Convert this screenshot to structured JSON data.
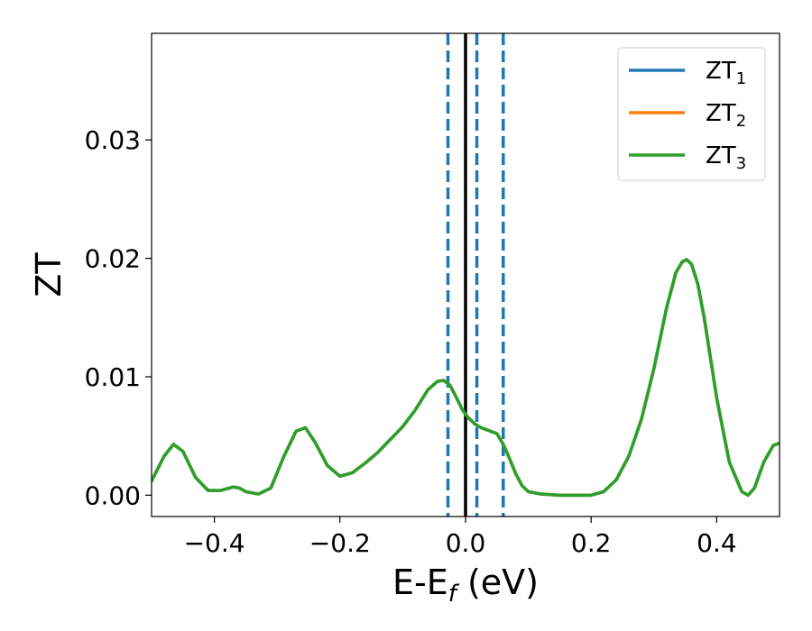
{
  "chart_data": {
    "type": "line",
    "xlabel_main": "E-E",
    "xlabel_sub": "f",
    "xlabel_unit": " (eV)",
    "ylabel": "ZT",
    "xlim": [
      -0.5,
      0.5
    ],
    "ylim": [
      -0.0018,
      0.039
    ],
    "x_ticks": [
      -0.4,
      -0.2,
      0.0,
      0.2,
      0.4
    ],
    "x_tick_labels": [
      "−0.4",
      "−0.2",
      "0.0",
      "0.2",
      "0.4"
    ],
    "y_ticks": [
      0.0,
      0.01,
      0.02,
      0.03
    ],
    "y_tick_labels": [
      "0.00",
      "0.01",
      "0.02",
      "0.03"
    ],
    "grid": false,
    "legend_position": "top-right",
    "vertical_lines": [
      {
        "x": -0.028,
        "style": "dashed",
        "color": "#1f77b4"
      },
      {
        "x": 0.0,
        "style": "solid",
        "color": "#000000"
      },
      {
        "x": 0.018,
        "style": "dashed",
        "color": "#1f77b4"
      },
      {
        "x": 0.06,
        "style": "dashed",
        "color": "#1f77b4"
      }
    ],
    "x": [
      -0.5,
      -0.48,
      -0.465,
      -0.45,
      -0.43,
      -0.41,
      -0.39,
      -0.37,
      -0.36,
      -0.35,
      -0.33,
      -0.31,
      -0.29,
      -0.27,
      -0.255,
      -0.24,
      -0.22,
      -0.2,
      -0.18,
      -0.16,
      -0.14,
      -0.12,
      -0.1,
      -0.08,
      -0.06,
      -0.045,
      -0.035,
      -0.025,
      -0.015,
      -0.005,
      0.005,
      0.015,
      0.025,
      0.035,
      0.05,
      0.06,
      0.07,
      0.08,
      0.09,
      0.1,
      0.12,
      0.15,
      0.18,
      0.2,
      0.22,
      0.24,
      0.26,
      0.28,
      0.3,
      0.32,
      0.335,
      0.345,
      0.352,
      0.36,
      0.37,
      0.38,
      0.4,
      0.42,
      0.44,
      0.45,
      0.46,
      0.475,
      0.49,
      0.5
    ],
    "series": [
      {
        "name": "ZT1",
        "color": "#1f77b4",
        "values": [
          0.0012,
          0.0033,
          0.0043,
          0.0037,
          0.0015,
          0.0004,
          0.0004,
          0.0007,
          0.0006,
          0.0003,
          0.0001,
          0.0006,
          0.0032,
          0.0054,
          0.0057,
          0.0045,
          0.0025,
          0.0016,
          0.0019,
          0.0027,
          0.0036,
          0.0047,
          0.0058,
          0.0072,
          0.0089,
          0.0096,
          0.0097,
          0.0093,
          0.0083,
          0.0072,
          0.0065,
          0.006,
          0.0057,
          0.0055,
          0.0052,
          0.0043,
          0.0031,
          0.0018,
          0.0008,
          0.0003,
          0.0001,
          0.0,
          0.0,
          0.0,
          0.0003,
          0.0013,
          0.0033,
          0.0064,
          0.0107,
          0.0158,
          0.0188,
          0.0197,
          0.0199,
          0.0195,
          0.0178,
          0.015,
          0.0082,
          0.0028,
          0.0003,
          0.0,
          0.0006,
          0.0028,
          0.0042,
          0.0044
        ]
      },
      {
        "name": "ZT2",
        "color": "#ff7f0e",
        "values": [
          0.0012,
          0.0033,
          0.0043,
          0.0037,
          0.0015,
          0.0004,
          0.0004,
          0.0007,
          0.0006,
          0.0003,
          0.0001,
          0.0006,
          0.0032,
          0.0054,
          0.0057,
          0.0045,
          0.0025,
          0.0016,
          0.0019,
          0.0027,
          0.0036,
          0.0047,
          0.0058,
          0.0072,
          0.0089,
          0.0096,
          0.0097,
          0.0093,
          0.0083,
          0.0072,
          0.0065,
          0.006,
          0.0057,
          0.0055,
          0.0052,
          0.0043,
          0.0031,
          0.0018,
          0.0008,
          0.0003,
          0.0001,
          0.0,
          0.0,
          0.0,
          0.0003,
          0.0013,
          0.0033,
          0.0064,
          0.0107,
          0.0158,
          0.0188,
          0.0197,
          0.0199,
          0.0195,
          0.0178,
          0.015,
          0.0082,
          0.0028,
          0.0003,
          0.0,
          0.0006,
          0.0028,
          0.0042,
          0.0044
        ]
      },
      {
        "name": "ZT3",
        "color": "#2ca02c",
        "values": [
          0.0012,
          0.0033,
          0.0043,
          0.0037,
          0.0015,
          0.0004,
          0.0004,
          0.0007,
          0.0006,
          0.0003,
          0.0001,
          0.0006,
          0.0032,
          0.0054,
          0.0057,
          0.0045,
          0.0025,
          0.0016,
          0.0019,
          0.0027,
          0.0036,
          0.0047,
          0.0058,
          0.0072,
          0.0089,
          0.0096,
          0.0097,
          0.0093,
          0.0083,
          0.0072,
          0.0065,
          0.006,
          0.0057,
          0.0055,
          0.0052,
          0.0043,
          0.0031,
          0.0018,
          0.0008,
          0.0003,
          0.0001,
          0.0,
          0.0,
          0.0,
          0.0003,
          0.0013,
          0.0033,
          0.0064,
          0.0107,
          0.0158,
          0.0188,
          0.0197,
          0.0199,
          0.0195,
          0.0178,
          0.015,
          0.0082,
          0.0028,
          0.0003,
          0.0,
          0.0006,
          0.0028,
          0.0042,
          0.0044
        ]
      }
    ],
    "legend": [
      {
        "label": "ZT",
        "sub": "1",
        "color": "#1f77b4"
      },
      {
        "label": "ZT",
        "sub": "2",
        "color": "#ff7f0e"
      },
      {
        "label": "ZT",
        "sub": "3",
        "color": "#2ca02c"
      }
    ]
  }
}
